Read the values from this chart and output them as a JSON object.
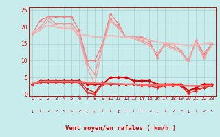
{
  "xlabel": "Vent moyen/en rafales ( km/h )",
  "bg_color": "#c8ecec",
  "grid_color": "#add4d4",
  "xlim": [
    -0.5,
    23.5
  ],
  "ylim": [
    -0.5,
    26
  ],
  "yticks": [
    0,
    5,
    10,
    15,
    20,
    25
  ],
  "xticks": [
    0,
    1,
    2,
    3,
    4,
    5,
    6,
    7,
    8,
    9,
    10,
    11,
    12,
    13,
    14,
    15,
    16,
    17,
    18,
    19,
    20,
    21,
    22,
    23
  ],
  "series": [
    {
      "x": [
        0,
        1,
        2,
        3,
        4,
        5,
        6,
        7,
        8,
        9,
        10,
        11,
        12,
        13,
        14,
        15,
        16,
        17,
        18,
        19,
        20,
        21,
        22,
        23
      ],
      "y": [
        18,
        22,
        23,
        23,
        23,
        23,
        19,
        10,
        10,
        15,
        24,
        21,
        17,
        17,
        17,
        16,
        11,
        15,
        15,
        13,
        10,
        16,
        12,
        15
      ],
      "color": "#f08080",
      "lw": 1.0,
      "marker": "D",
      "ms": 2.0
    },
    {
      "x": [
        0,
        1,
        2,
        3,
        4,
        5,
        6,
        7,
        8,
        9,
        10,
        11,
        12,
        13,
        14,
        15,
        16,
        17,
        18,
        19,
        20,
        21,
        22,
        23
      ],
      "y": [
        18,
        20,
        23,
        21,
        21,
        21,
        18,
        9,
        6,
        15,
        22.5,
        20,
        17,
        17,
        16,
        15,
        12,
        15,
        14,
        13,
        10,
        16,
        11,
        15
      ],
      "color": "#f09898",
      "lw": 1.0,
      "marker": "D",
      "ms": 2.0
    },
    {
      "x": [
        0,
        1,
        2,
        3,
        4,
        5,
        6,
        7,
        8,
        9,
        10,
        11,
        12,
        13,
        14,
        15,
        16,
        17,
        18,
        19,
        20,
        21,
        22,
        23
      ],
      "y": [
        18,
        19,
        22,
        20,
        20,
        20,
        17,
        8,
        3,
        14,
        22,
        19.5,
        17,
        16.5,
        15.5,
        14.5,
        12,
        14.5,
        13.5,
        12.5,
        9.5,
        15.5,
        10.5,
        14.5
      ],
      "color": "#f0a8a8",
      "lw": 1.0,
      "marker": null,
      "ms": 0
    },
    {
      "x": [
        0,
        1,
        2,
        3,
        4,
        5,
        6,
        7,
        8,
        9,
        10,
        11,
        12,
        13,
        14,
        15,
        16,
        17,
        18,
        19,
        20,
        21,
        22,
        23
      ],
      "y": [
        18.5,
        19.5,
        20.5,
        20.0,
        19.5,
        19.5,
        18.0,
        17.5,
        17.0,
        17.0,
        17.5,
        17.2,
        17.0,
        16.8,
        16.5,
        16.0,
        15.5,
        15.2,
        15.0,
        14.8,
        14.5,
        14.5,
        15.0,
        15.2
      ],
      "color": "#f0b8b8",
      "lw": 1.5,
      "marker": null,
      "ms": 0
    },
    {
      "x": [
        0,
        1,
        2,
        3,
        4,
        5,
        6,
        7,
        8,
        9,
        10,
        11,
        12,
        13,
        14,
        15,
        16,
        17,
        18,
        19,
        20,
        21,
        22,
        23
      ],
      "y": [
        3,
        4,
        4,
        4,
        4,
        4,
        4,
        3,
        3,
        3,
        5,
        5,
        5,
        4,
        4,
        4,
        3,
        3,
        3,
        3,
        1,
        2,
        3,
        3
      ],
      "color": "#dd0000",
      "lw": 1.5,
      "marker": "D",
      "ms": 2.5
    },
    {
      "x": [
        0,
        1,
        2,
        3,
        4,
        5,
        6,
        7,
        8,
        9,
        10,
        11,
        12,
        13,
        14,
        15,
        16,
        17,
        18,
        19,
        20,
        21,
        22,
        23
      ],
      "y": [
        3,
        4,
        4,
        4,
        4,
        4,
        4,
        1.5,
        0.5,
        3.5,
        3,
        3,
        3,
        3,
        3,
        3,
        2.5,
        2.5,
        2.5,
        2.5,
        1,
        1.5,
        2,
        2.5
      ],
      "color": "#cc1111",
      "lw": 1.0,
      "marker": "D",
      "ms": 2.0
    },
    {
      "x": [
        0,
        1,
        2,
        3,
        4,
        5,
        6,
        7,
        8,
        9,
        10,
        11,
        12,
        13,
        14,
        15,
        16,
        17,
        18,
        19,
        20,
        21,
        22,
        23
      ],
      "y": [
        3,
        3.5,
        3.5,
        3.5,
        3.5,
        3.5,
        3.5,
        0.5,
        0,
        3,
        3,
        3,
        3,
        3,
        2.5,
        2.5,
        2,
        2.5,
        2.5,
        2.5,
        0.3,
        1,
        2,
        2.5
      ],
      "color": "#ee2222",
      "lw": 1.0,
      "marker": "D",
      "ms": 2.0
    },
    {
      "x": [
        0,
        1,
        2,
        3,
        4,
        5,
        6,
        7,
        8,
        9,
        10,
        11,
        12,
        13,
        14,
        15,
        16,
        17,
        18,
        19,
        20,
        21,
        22,
        23
      ],
      "y": [
        3.2,
        3.8,
        3.8,
        3.8,
        3.8,
        3.8,
        3.7,
        3.5,
        3.3,
        3.2,
        3.2,
        3.1,
        3.0,
        3.0,
        2.9,
        2.8,
        2.7,
        2.7,
        2.6,
        2.6,
        2.5,
        2.5,
        2.5,
        2.6
      ],
      "color": "#f07070",
      "lw": 1.8,
      "marker": null,
      "ms": 0
    }
  ],
  "arrows": [
    "↓",
    "↑",
    "↗",
    "↙",
    "↖",
    "↖",
    "↙",
    "↓",
    "←",
    "↑",
    "↑",
    "↕",
    "↑",
    "↑",
    "↑",
    "↗",
    "↓",
    "↑",
    "↗",
    "↗",
    "↓",
    "↑",
    "↙",
    "↖"
  ],
  "arrow_color": "#cc0000",
  "tick_color": "#cc0000",
  "xlabel_color": "#cc0000"
}
